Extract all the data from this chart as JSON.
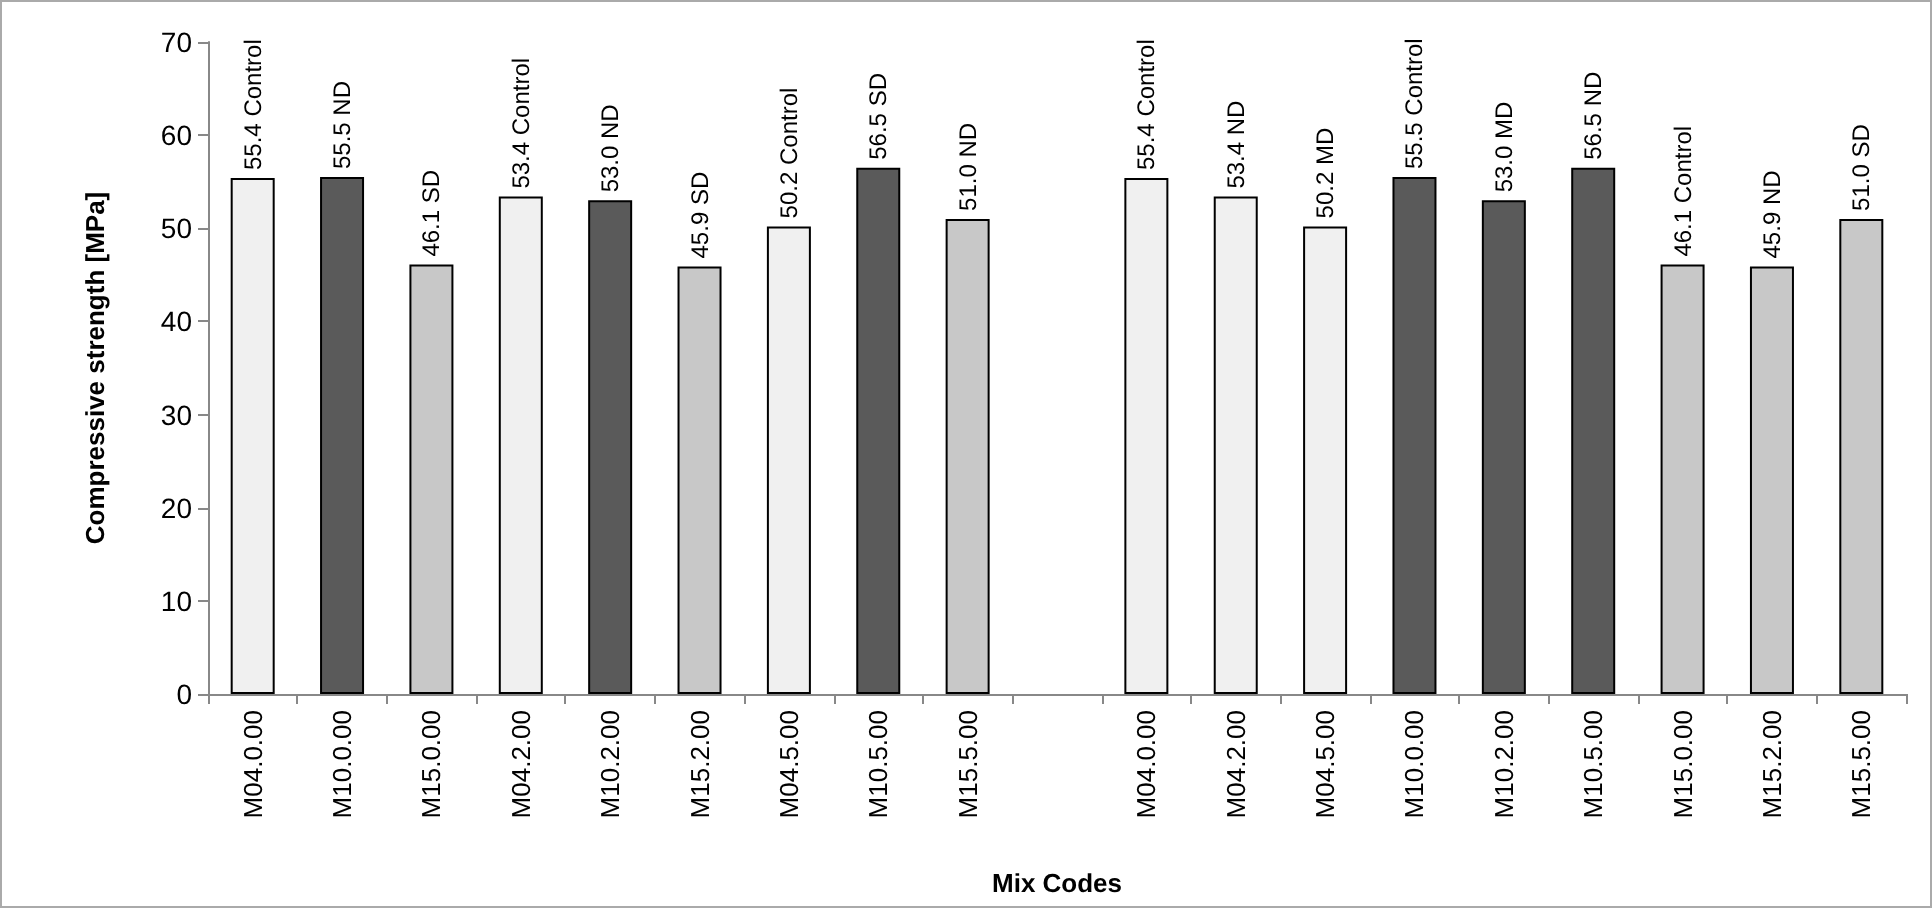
{
  "chart_data": {
    "type": "bar",
    "xlabel": "Mix Codes",
    "ylabel": "Compressive strength [MPa]",
    "categories": [
      "M04.0.00",
      "M10.0.00",
      "M15.0.00",
      "M04.2.00",
      "M10.2.00",
      "M15.2.00",
      "M04.5.00",
      "M10.5.00",
      "M15.5.00",
      null,
      "M04.0.00",
      "M04.2.00",
      "M04.5.00",
      "M10.0.00",
      "M10.2.00",
      "M10.5.00",
      "M15.0.00",
      "M15.2.00",
      "M15.5.00"
    ],
    "values": [
      55.4,
      55.5,
      46.1,
      53.4,
      53.0,
      45.9,
      50.2,
      56.5,
      51.0,
      null,
      55.4,
      53.4,
      50.2,
      55.5,
      53.0,
      56.5,
      46.1,
      45.9,
      51.0
    ],
    "value_labels": [
      "55.4 Control",
      "55.5 ND",
      "46.1 SD",
      "53.4 Control",
      "53.0 ND",
      "45.9 SD",
      "50.2 Control",
      "56.5 SD",
      "51.0 ND",
      null,
      "55.4 Control",
      "53.4 ND",
      "50.2 MD",
      "55.5 Control",
      "53.0 MD",
      "56.5 ND",
      "46.1 Control",
      "45.9 ND",
      "51.0 SD"
    ],
    "colors": [
      "#f0f0f0",
      "#5a5a5a",
      "#c8c8c8",
      "#f0f0f0",
      "#5a5a5a",
      "#c8c8c8",
      "#f0f0f0",
      "#5a5a5a",
      "#c8c8c8",
      null,
      "#f0f0f0",
      "#f0f0f0",
      "#f0f0f0",
      "#5a5a5a",
      "#5a5a5a",
      "#5a5a5a",
      "#c8c8c8",
      "#c8c8c8",
      "#c8c8c8"
    ],
    "ylim": [
      0,
      70
    ],
    "yticks": [
      0,
      10,
      20,
      30,
      40,
      50,
      60,
      70
    ]
  }
}
